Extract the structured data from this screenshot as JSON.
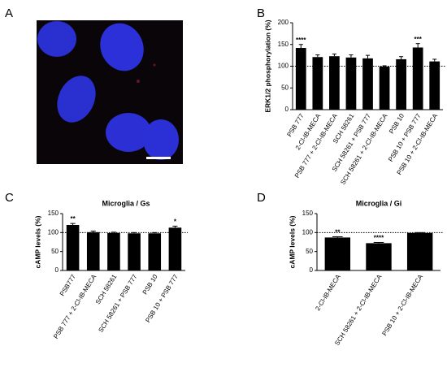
{
  "panel_labels": [
    "A",
    "B",
    "C",
    "D"
  ],
  "chart_data": [
    {
      "type": "bar",
      "ylabel": "ERK1/2 phosphorylation (%)",
      "categories": [
        "PSB 777",
        "2-Cl-IB-MECA",
        "PSB 777 + 2-Cl-IB-MECA",
        "SCH 58261",
        "SCH 58261 + PSB 777",
        "SCH 58261 + 2-Cl-IB-MECA",
        "PSB 10",
        "PSB 10 + PSB 777",
        "PSB 10 + 2-Cl-IB-MECA"
      ],
      "values": [
        142,
        121,
        123,
        120,
        118,
        99,
        116,
        143,
        111
      ],
      "errors": [
        8,
        5,
        5,
        6,
        7,
        2,
        6,
        9,
        5
      ],
      "sig_labels": [
        "****",
        null,
        null,
        null,
        null,
        null,
        null,
        "***",
        null
      ],
      "color": "#000000",
      "refline": 100,
      "ylim": [
        0,
        200
      ],
      "yticks": [
        0,
        50,
        100,
        150,
        200
      ]
    },
    {
      "type": "bar",
      "title": "Microglia / Gs",
      "ylabel": "cAMP levels (%)",
      "categories": [
        "PSB777",
        "PSB 777 + 2-Cl-IB-MECA",
        "SCH 58261",
        "SCH 58261 + PSB 777",
        "PSB 10",
        "PSB 10 + PSB 777"
      ],
      "values": [
        120,
        101,
        99,
        98,
        98,
        113
      ],
      "errors": [
        4,
        3,
        2,
        2,
        2,
        4
      ],
      "sig_labels": [
        "**",
        null,
        null,
        null,
        null,
        "*"
      ],
      "color": "#000000",
      "refline": 100,
      "ylim": [
        0,
        150
      ],
      "yticks": [
        0,
        50,
        100,
        150
      ]
    },
    {
      "type": "bar",
      "title": "Microglia / Gi",
      "ylabel": "cAMP levels (%)",
      "categories": [
        "2-Cl-IB-MECA",
        "SCH 58261 + 2-Cl-IB-MECA",
        "PSB 10 + 2-Cl-IB-MECA"
      ],
      "values": [
        87,
        72,
        99
      ],
      "errors": [
        2,
        2,
        1
      ],
      "sig_labels": [
        "**",
        "****",
        null
      ],
      "color": "#000000",
      "refline": 100,
      "ylim": [
        0,
        150
      ],
      "yticks": [
        0,
        50,
        100,
        150
      ]
    }
  ]
}
